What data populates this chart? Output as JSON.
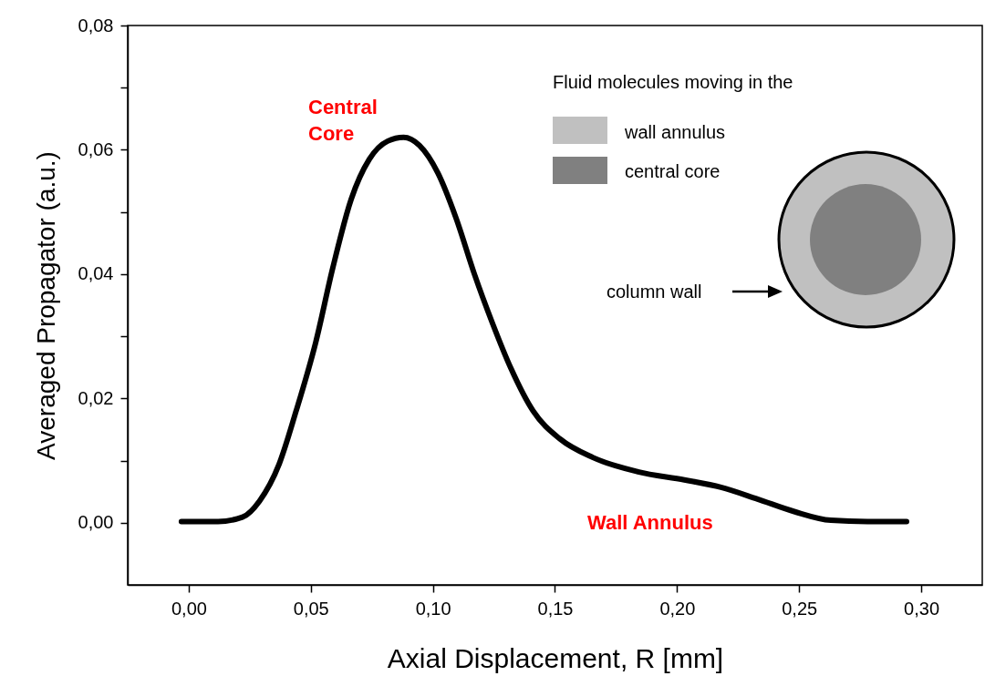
{
  "chart_data": {
    "type": "line",
    "xlabel": "Axial Displacement, R   [mm]",
    "ylabel": "Averaged Propagator   (a.u.)",
    "x": [
      -0.003,
      0.012,
      0.022,
      0.029,
      0.037,
      0.044,
      0.052,
      0.059,
      0.0665,
      0.074,
      0.0815,
      0.088,
      0.0945,
      0.102,
      0.1095,
      0.117,
      0.1245,
      0.132,
      0.141,
      0.152,
      0.1655,
      0.184,
      0.203,
      0.218,
      0.233,
      0.248,
      0.263,
      0.278,
      0.294
    ],
    "series": [
      {
        "color": "#000000",
        "values": [
          0.0002,
          0.0002,
          0.0009,
          0.0035,
          0.0094,
          0.018,
          0.029,
          0.041,
          0.052,
          0.0585,
          0.0614,
          0.062,
          0.0607,
          0.0563,
          0.049,
          0.04,
          0.032,
          0.0248,
          0.018,
          0.0135,
          0.0105,
          0.0082,
          0.0069,
          0.0057,
          0.0038,
          0.0018,
          0.0004,
          0.0002,
          0.0002
        ]
      }
    ],
    "xlim": [
      -0.025,
      0.325
    ],
    "ylim": [
      -0.01,
      0.08
    ],
    "xticks": [
      {
        "value": 0,
        "label": "0,00"
      },
      {
        "value": 0.05,
        "label": "0,05"
      },
      {
        "value": 0.1,
        "label": "0,10"
      },
      {
        "value": 0.15,
        "label": "0,15"
      },
      {
        "value": 0.2,
        "label": "0,20"
      },
      {
        "value": 0.25,
        "label": "0,25"
      },
      {
        "value": 0.3,
        "label": "0,30"
      }
    ],
    "yticks": [
      {
        "value": 0,
        "label": "0,00"
      },
      {
        "value": 0.01,
        "label": null
      },
      {
        "value": 0.02,
        "label": "0,02"
      },
      {
        "value": 0.03,
        "label": null
      },
      {
        "value": 0.04,
        "label": "0,04"
      },
      {
        "value": 0.05,
        "label": null
      },
      {
        "value": 0.06,
        "label": "0,06"
      },
      {
        "value": 0.07,
        "label": null
      },
      {
        "value": 0.08,
        "label": "0,08"
      }
    ],
    "grid": false,
    "marker": "none",
    "line_style": "solid",
    "annotations": [
      "Central\nCore",
      "Wall Annulus",
      "Fluid molecules moving in the",
      "wall annulus",
      "central core",
      "column wall"
    ]
  }
}
